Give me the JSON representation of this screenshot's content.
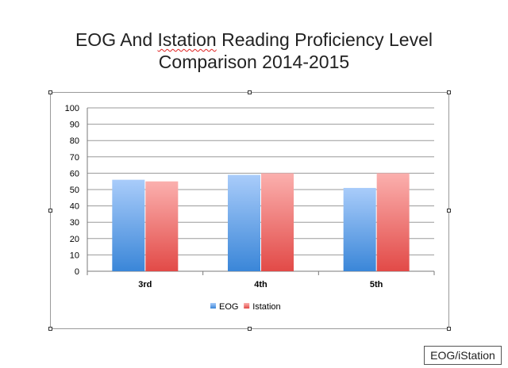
{
  "slide": {
    "title_prefix": "EOG And ",
    "title_flagged_word": "Istation",
    "title_suffix": " Reading Proficiency Level",
    "title_line2": "Comparison 2014-2015",
    "source_label": "EOG/iStation"
  },
  "chart_data": {
    "type": "bar",
    "categories": [
      "3rd",
      "4th",
      "5th"
    ],
    "series": [
      {
        "name": "EOG",
        "values": [
          56,
          59,
          51
        ],
        "color_top": "#a9ccfa",
        "color_bottom": "#3a86d8"
      },
      {
        "name": "Istation",
        "values": [
          55,
          60,
          60
        ],
        "color_top": "#fbb0ae",
        "color_bottom": "#e24a47"
      }
    ],
    "ylim": [
      0,
      100
    ],
    "yticks": [
      "0",
      "10",
      "20",
      "30",
      "40",
      "50",
      "60",
      "70",
      "80",
      "90",
      "100"
    ],
    "grid": true,
    "legend": "bottom"
  }
}
